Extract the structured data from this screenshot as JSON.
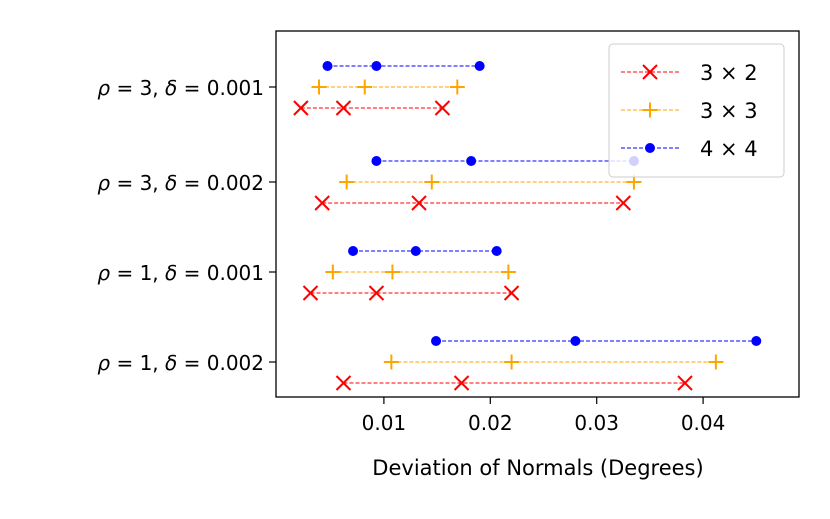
{
  "chart_data": {
    "type": "scatter",
    "title": "",
    "xlabel": "Deviation of Normals (Degrees)",
    "ylabel": "",
    "xlim": [
      0.0,
      0.047
    ],
    "xticks": [
      0.01,
      0.02,
      0.03,
      0.04
    ],
    "xtick_labels": [
      "0.01",
      "0.02",
      "0.03",
      "0.04"
    ],
    "categories": [
      "ρ = 1, δ = 0.002",
      "ρ = 1, δ = 0.001",
      "ρ = 3, δ = 0.002",
      "ρ = 3, δ = 0.001"
    ],
    "category_parts": [
      {
        "rho": "1",
        "delta": "0.002"
      },
      {
        "rho": "1",
        "delta": "0.001"
      },
      {
        "rho": "3",
        "delta": "0.002"
      },
      {
        "rho": "3",
        "delta": "0.001"
      }
    ],
    "legend_position": "top-right",
    "series": [
      {
        "name": "3 × 2",
        "label_left": "3",
        "label_right": "2",
        "color": "#ff0000",
        "marker": "x",
        "line_style": "dashed",
        "values": [
          [
            0.0062,
            0.0173,
            0.0383
          ],
          [
            0.0031,
            0.0093,
            0.022
          ],
          [
            0.0042,
            0.0133,
            0.0325
          ],
          [
            0.0022,
            0.0062,
            0.0155
          ]
        ]
      },
      {
        "name": "3 × 3",
        "label_left": "3",
        "label_right": "3",
        "color": "#ffa500",
        "marker": "+",
        "line_style": "dashed",
        "values": [
          [
            0.0107,
            0.022,
            0.0412
          ],
          [
            0.0052,
            0.0108,
            0.0217
          ],
          [
            0.0065,
            0.0145,
            0.0335
          ],
          [
            0.0039,
            0.0082,
            0.0169
          ]
        ]
      },
      {
        "name": "4 × 4",
        "label_left": "4",
        "label_right": "4",
        "color": "#0000ff",
        "marker": "o",
        "line_style": "dashed",
        "values": [
          [
            0.0149,
            0.028,
            0.045
          ],
          [
            0.0071,
            0.013,
            0.0206
          ],
          [
            0.0093,
            0.0182,
            0.0335
          ],
          [
            0.0047,
            0.0093,
            0.019
          ]
        ]
      }
    ]
  }
}
